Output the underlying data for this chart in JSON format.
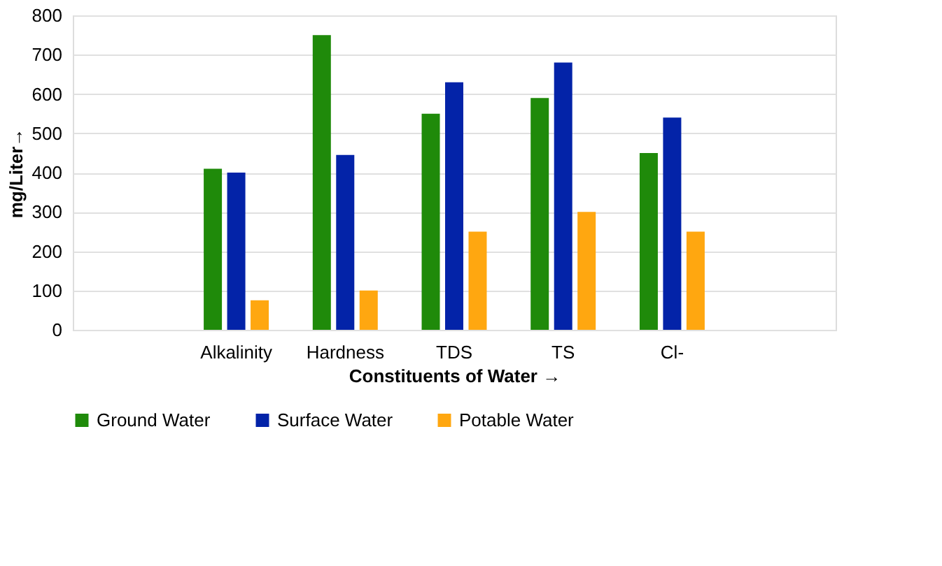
{
  "chart_data": {
    "type": "bar",
    "categories": [
      null,
      "Alkalinity",
      "Hardness",
      "TDS",
      "TS",
      "Cl-",
      null
    ],
    "series": [
      {
        "name": "Ground Water",
        "color": "#1f8a0a",
        "values": [
          null,
          410,
          750,
          550,
          590,
          450,
          null
        ]
      },
      {
        "name": "Surface Water",
        "color": "#0323a8",
        "values": [
          null,
          400,
          445,
          630,
          680,
          540,
          null
        ]
      },
      {
        "name": "Potable Water",
        "color": "#ffa710",
        "values": [
          null,
          75,
          100,
          250,
          300,
          250,
          null
        ]
      }
    ],
    "xlabel": "Constituents of Water →",
    "ylabel": "mg/Liter→",
    "ylim": [
      0,
      800
    ],
    "yticks": [
      0,
      100,
      200,
      300,
      400,
      500,
      600,
      700,
      800
    ],
    "grid": "y",
    "legend": "bottom"
  }
}
